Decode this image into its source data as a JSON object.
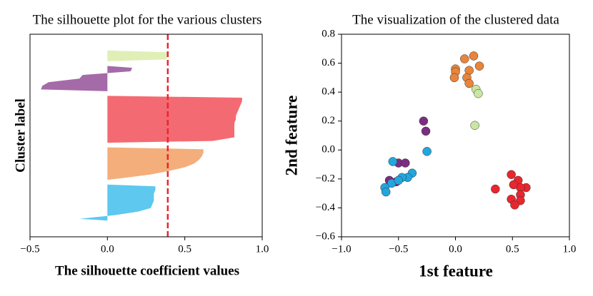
{
  "chart_data": [
    {
      "type": "silhouette",
      "title": "The silhouette plot for the various clusters",
      "xlabel": "The silhouette coefficient values",
      "ylabel": "Cluster label",
      "xlim": [
        -0.5,
        1.0
      ],
      "xticks": [
        {
          "value": -0.5,
          "label": "−0.5"
        },
        {
          "value": 0.0,
          "label": "0.0"
        },
        {
          "value": 0.5,
          "label": "0.5"
        },
        {
          "value": 1.0,
          "label": "1.0"
        }
      ],
      "average": 0.39,
      "average_color": "#e8262f",
      "series": [
        {
          "color": "#e0efb6",
          "values": [
            0.39,
            0.39,
            0.38
          ]
        },
        {
          "color": "#a56aa8",
          "values": [
            0.16,
            0.15,
            -0.16,
            -0.18,
            -0.38,
            -0.42,
            -0.43
          ]
        },
        {
          "color": "#f46a72",
          "values": [
            0.87,
            0.87,
            0.86,
            0.85,
            0.84,
            0.83,
            0.83,
            0.82,
            0.82,
            0.82,
            0.82,
            0.82,
            0.68
          ]
        },
        {
          "color": "#f3ae7b",
          "values": [
            0.62,
            0.62,
            0.61,
            0.59,
            0.56,
            0.5,
            0.4,
            0.28,
            0.1
          ]
        },
        {
          "color": "#5ec8ee",
          "values": [
            0.31,
            0.31,
            0.3,
            0.3,
            0.3,
            0.29,
            0.28,
            0.2,
            0.05,
            -0.18
          ]
        }
      ]
    },
    {
      "type": "scatter",
      "title": "The visualization of the clustered data",
      "xlabel": "1st feature",
      "ylabel": "2nd feature",
      "xlim": [
        -1.0,
        1.0
      ],
      "ylim": [
        -0.6,
        0.8
      ],
      "xticks": [
        {
          "value": -1.0,
          "label": "−1.0"
        },
        {
          "value": -0.5,
          "label": "−0.5"
        },
        {
          "value": 0.0,
          "label": "0.0"
        },
        {
          "value": 0.5,
          "label": "0.5"
        },
        {
          "value": 1.0,
          "label": "1.0"
        }
      ],
      "yticks": [
        {
          "value": -0.6,
          "label": "−0.6"
        },
        {
          "value": -0.4,
          "label": "−0.4"
        },
        {
          "value": -0.2,
          "label": "−0.2"
        },
        {
          "value": 0.0,
          "label": "0.0"
        },
        {
          "value": 0.2,
          "label": "0.2"
        },
        {
          "value": 0.4,
          "label": "0.4"
        },
        {
          "value": 0.6,
          "label": "0.6"
        },
        {
          "value": 0.8,
          "label": "0.8"
        }
      ],
      "series": [
        {
          "color": "#e8843b",
          "x": [
            0.16,
            0.08,
            0.21,
            0.0,
            0.0,
            0.12,
            -0.01,
            0.1,
            0.12
          ],
          "y": [
            0.65,
            0.63,
            0.58,
            0.56,
            0.54,
            0.55,
            0.5,
            0.5,
            0.46
          ]
        },
        {
          "color": "#c9e6a2",
          "x": [
            0.18,
            0.2,
            0.17
          ],
          "y": [
            0.42,
            0.39,
            0.17
          ]
        },
        {
          "color": "#7b2d82",
          "x": [
            -0.28,
            -0.26,
            -0.5,
            -0.44,
            -0.58,
            -0.52
          ],
          "y": [
            0.2,
            0.13,
            -0.09,
            -0.09,
            -0.21,
            -0.22
          ]
        },
        {
          "color": "#22a6dd",
          "x": [
            -0.25,
            -0.55,
            -0.38,
            -0.42,
            -0.47,
            -0.56,
            -0.62,
            -0.61,
            -0.5
          ],
          "y": [
            -0.01,
            -0.08,
            -0.16,
            -0.19,
            -0.19,
            -0.23,
            -0.26,
            -0.29,
            -0.21
          ]
        },
        {
          "color": "#e8262f",
          "x": [
            0.49,
            0.35,
            0.55,
            0.62,
            0.57,
            0.57,
            0.49,
            0.57,
            0.52,
            0.51
          ],
          "y": [
            -0.17,
            -0.27,
            -0.21,
            -0.26,
            -0.26,
            -0.31,
            -0.34,
            -0.35,
            -0.38,
            -0.24
          ]
        }
      ]
    }
  ]
}
